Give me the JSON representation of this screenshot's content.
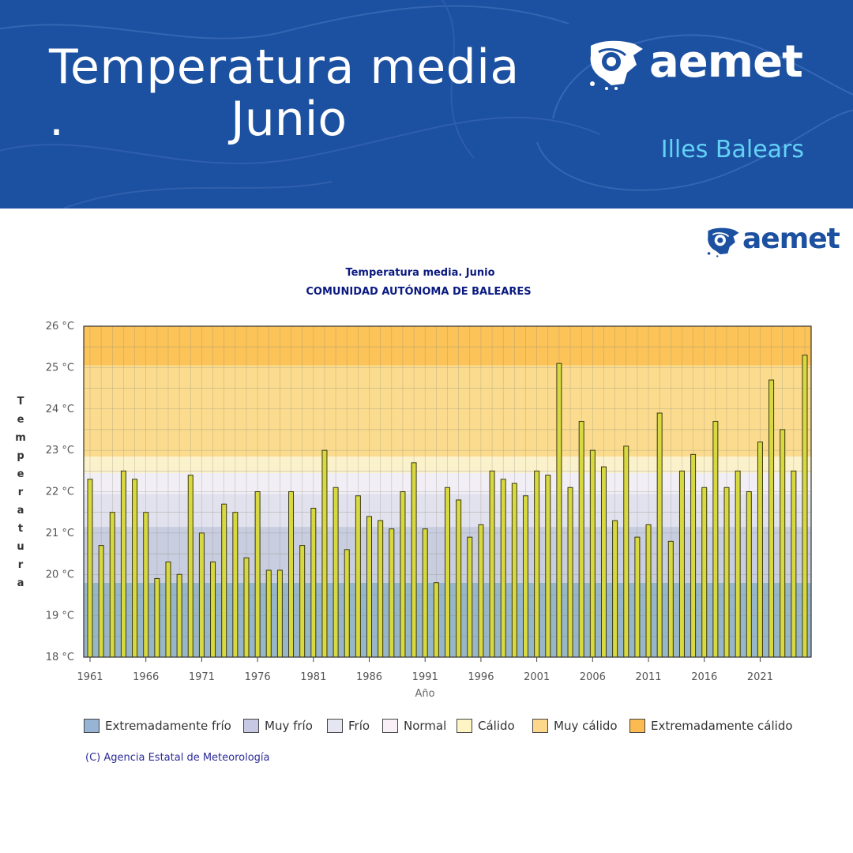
{
  "banner": {
    "title_line1": "Temperatura media",
    "title_dot": ".",
    "title_line2": "Junio",
    "region": "Illes Balears",
    "logo_text": "aemet",
    "background_color": "#1c50a0",
    "region_color": "#63d2f7"
  },
  "chart_logo_text": "aemet",
  "credit": "(C) Agencia Estatal de Meteorología",
  "chart_data": {
    "type": "bar",
    "title": "Temperatura media. Junio",
    "subtitle": "COMUNIDAD AUTÓNOMA DE BALEARES",
    "xlabel": "Año",
    "ylabel": "Temperatura",
    "ylim": [
      18,
      26
    ],
    "y_ticks": [
      18,
      19,
      20,
      21,
      22,
      23,
      24,
      25,
      26
    ],
    "y_tick_unit": "°C",
    "x_tick_labels": [
      "1961",
      "1966",
      "1971",
      "1976",
      "1981",
      "1986",
      "1991",
      "1996",
      "2001",
      "2006",
      "2011",
      "2016",
      "2021"
    ],
    "grid": true,
    "bar_color": "#d8d840",
    "categories": [
      1961,
      1962,
      1963,
      1964,
      1965,
      1966,
      1967,
      1968,
      1969,
      1970,
      1971,
      1972,
      1973,
      1974,
      1975,
      1976,
      1977,
      1978,
      1979,
      1980,
      1981,
      1982,
      1983,
      1984,
      1985,
      1986,
      1987,
      1988,
      1989,
      1990,
      1991,
      1992,
      1993,
      1994,
      1995,
      1996,
      1997,
      1998,
      1999,
      2000,
      2001,
      2002,
      2003,
      2004,
      2005,
      2006,
      2007,
      2008,
      2009,
      2010,
      2011,
      2012,
      2013,
      2014,
      2015,
      2016,
      2017,
      2018,
      2019,
      2020,
      2021,
      2022,
      2023,
      2024,
      2025
    ],
    "values": [
      22.3,
      20.7,
      21.5,
      22.5,
      22.3,
      21.5,
      19.9,
      20.3,
      20.0,
      22.4,
      21.0,
      20.3,
      21.7,
      21.5,
      20.4,
      22.0,
      20.1,
      20.1,
      22.0,
      20.7,
      21.6,
      23.0,
      22.1,
      20.6,
      21.9,
      21.4,
      21.3,
      21.1,
      22.0,
      22.7,
      21.1,
      19.8,
      22.1,
      21.8,
      20.9,
      21.2,
      22.5,
      22.3,
      22.2,
      21.9,
      22.5,
      22.4,
      25.1,
      22.1,
      23.7,
      23.0,
      22.6,
      21.3,
      23.1,
      20.9,
      21.2,
      23.9,
      20.8,
      22.5,
      22.9,
      22.1,
      23.7,
      22.1,
      22.5,
      22.0,
      23.2,
      24.7,
      23.5,
      22.5,
      25.3
    ],
    "bands": [
      {
        "name": "Extremadamente frío",
        "from": 18.0,
        "to": 19.8,
        "color": "#97b6c9",
        "swatch": "#98b4d4"
      },
      {
        "name": "Muy frío",
        "from": 19.8,
        "to": 21.15,
        "color": "#c8cde0",
        "swatch": "#c6c8e4"
      },
      {
        "name": "Frío",
        "from": 21.15,
        "to": 21.95,
        "color": "#e2e2ef",
        "swatch": "#e6e6f2"
      },
      {
        "name": "Normal",
        "from": 21.95,
        "to": 22.45,
        "color": "#f1eef5",
        "swatch": "#f8f0f6"
      },
      {
        "name": "Cálido",
        "from": 22.45,
        "to": 22.85,
        "color": "#fbf2cc",
        "swatch": "#fff4c4"
      },
      {
        "name": "Muy cálido",
        "from": 22.85,
        "to": 25.05,
        "color": "#fbdc8e",
        "swatch": "#fdd88c"
      },
      {
        "name": "Extremadamente cálido",
        "from": 25.05,
        "to": 26.0,
        "color": "#fbc358",
        "swatch": "#fbbb50"
      }
    ],
    "legend": [
      "Extremadamente frío",
      "Muy frío",
      "Frío",
      "Normal",
      "Cálido",
      "Muy cálido",
      "Extremadamente cálido"
    ]
  }
}
